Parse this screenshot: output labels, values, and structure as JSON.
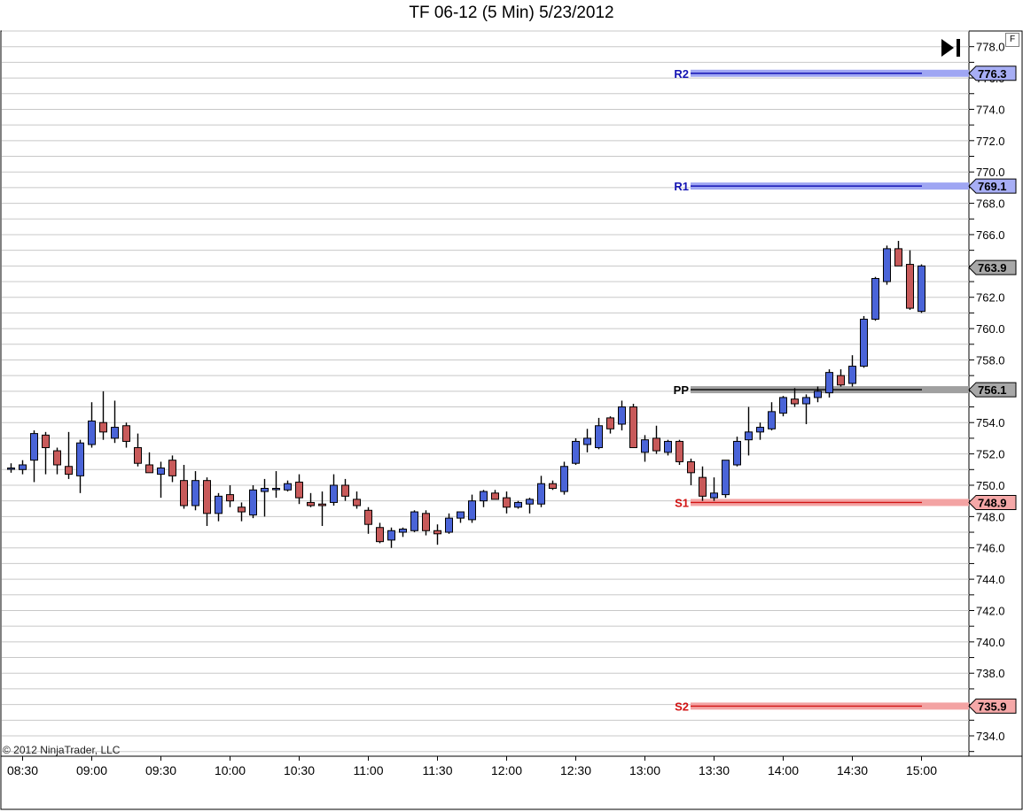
{
  "title": "TF 06-12 (5 Min)  5/23/2012",
  "copyright": "© 2012 NinjaTrader, LLC",
  "panel_button": "F",
  "colors": {
    "up": "#4a64d8",
    "down": "#c85a5a",
    "grid": "#c8c8c8",
    "resistance": "#1414b4",
    "support": "#d21414",
    "pivot": "#000000"
  },
  "chart_data": {
    "type": "candlestick",
    "title": "TF 06-12 (5 Min)  5/23/2012",
    "ylim": [
      732.7,
      779.0
    ],
    "y_ticks": [
      "734.0",
      "736.0",
      "738.0",
      "740.0",
      "742.0",
      "744.0",
      "746.0",
      "748.0",
      "750.0",
      "752.0",
      "754.0",
      "756.0",
      "758.0",
      "760.0",
      "762.0",
      "764.0",
      "766.0",
      "768.0",
      "770.0",
      "772.0",
      "774.0",
      "776.0",
      "778.0"
    ],
    "x_labels": [
      "08:30",
      "09:00",
      "09:30",
      "10:00",
      "10:30",
      "11:00",
      "11:30",
      "12:00",
      "12:30",
      "13:00",
      "13:30",
      "14:00",
      "14:30",
      "15:00"
    ],
    "bars_per_label": 6,
    "grid": true,
    "candles": [
      {
        "o": 751.1,
        "h": 751.4,
        "l": 750.8,
        "c": 751.1
      },
      {
        "o": 751.0,
        "h": 751.6,
        "l": 750.7,
        "c": 751.3
      },
      {
        "o": 751.6,
        "h": 753.5,
        "l": 750.2,
        "c": 753.3
      },
      {
        "o": 753.2,
        "h": 753.4,
        "l": 750.7,
        "c": 752.4
      },
      {
        "o": 752.2,
        "h": 752.4,
        "l": 750.7,
        "c": 751.3
      },
      {
        "o": 751.2,
        "h": 753.4,
        "l": 750.4,
        "c": 750.7
      },
      {
        "o": 750.6,
        "h": 752.9,
        "l": 749.5,
        "c": 752.7
      },
      {
        "o": 752.6,
        "h": 755.3,
        "l": 752.4,
        "c": 754.1
      },
      {
        "o": 754.0,
        "h": 756.0,
        "l": 752.9,
        "c": 753.4
      },
      {
        "o": 753.0,
        "h": 755.4,
        "l": 752.7,
        "c": 753.7
      },
      {
        "o": 753.8,
        "h": 754.0,
        "l": 752.4,
        "c": 752.8
      },
      {
        "o": 752.4,
        "h": 753.3,
        "l": 751.2,
        "c": 751.4
      },
      {
        "o": 751.3,
        "h": 752.1,
        "l": 750.9,
        "c": 750.8
      },
      {
        "o": 750.7,
        "h": 751.5,
        "l": 749.2,
        "c": 751.1
      },
      {
        "o": 751.6,
        "h": 751.9,
        "l": 750.2,
        "c": 750.6
      },
      {
        "o": 750.3,
        "h": 751.3,
        "l": 748.5,
        "c": 748.7
      },
      {
        "o": 748.7,
        "h": 750.9,
        "l": 748.4,
        "c": 750.3
      },
      {
        "o": 750.3,
        "h": 750.5,
        "l": 747.4,
        "c": 748.2
      },
      {
        "o": 748.2,
        "h": 749.5,
        "l": 747.7,
        "c": 749.3
      },
      {
        "o": 749.4,
        "h": 750.0,
        "l": 748.6,
        "c": 749.0
      },
      {
        "o": 748.6,
        "h": 748.9,
        "l": 747.7,
        "c": 748.3
      },
      {
        "o": 748.1,
        "h": 750.0,
        "l": 747.9,
        "c": 749.7
      },
      {
        "o": 749.6,
        "h": 750.4,
        "l": 748.0,
        "c": 749.8
      },
      {
        "o": 749.8,
        "h": 750.9,
        "l": 749.2,
        "c": 749.8
      },
      {
        "o": 749.7,
        "h": 750.3,
        "l": 749.6,
        "c": 750.1
      },
      {
        "o": 750.2,
        "h": 750.7,
        "l": 748.8,
        "c": 749.2
      },
      {
        "o": 748.9,
        "h": 749.5,
        "l": 748.6,
        "c": 748.7
      },
      {
        "o": 748.8,
        "h": 749.6,
        "l": 747.4,
        "c": 748.7
      },
      {
        "o": 748.9,
        "h": 750.7,
        "l": 748.7,
        "c": 750.0
      },
      {
        "o": 750.0,
        "h": 750.4,
        "l": 749.0,
        "c": 749.3
      },
      {
        "o": 749.1,
        "h": 749.6,
        "l": 748.5,
        "c": 748.7
      },
      {
        "o": 748.4,
        "h": 748.6,
        "l": 746.9,
        "c": 747.5
      },
      {
        "o": 747.3,
        "h": 747.6,
        "l": 746.3,
        "c": 746.4
      },
      {
        "o": 746.5,
        "h": 747.3,
        "l": 746.0,
        "c": 747.1
      },
      {
        "o": 747.0,
        "h": 747.3,
        "l": 746.7,
        "c": 747.2
      },
      {
        "o": 747.1,
        "h": 748.4,
        "l": 747.0,
        "c": 748.3
      },
      {
        "o": 748.2,
        "h": 748.4,
        "l": 746.8,
        "c": 747.1
      },
      {
        "o": 747.1,
        "h": 747.5,
        "l": 746.2,
        "c": 746.9
      },
      {
        "o": 747.0,
        "h": 748.2,
        "l": 746.9,
        "c": 747.9
      },
      {
        "o": 747.9,
        "h": 748.3,
        "l": 747.6,
        "c": 748.3
      },
      {
        "o": 747.8,
        "h": 749.4,
        "l": 747.6,
        "c": 749.0
      },
      {
        "o": 749.0,
        "h": 749.7,
        "l": 748.6,
        "c": 749.6
      },
      {
        "o": 749.5,
        "h": 749.7,
        "l": 749.1,
        "c": 749.1
      },
      {
        "o": 749.2,
        "h": 749.6,
        "l": 748.2,
        "c": 748.6
      },
      {
        "o": 748.6,
        "h": 749.0,
        "l": 748.5,
        "c": 748.9
      },
      {
        "o": 748.8,
        "h": 749.2,
        "l": 748.2,
        "c": 749.1
      },
      {
        "o": 748.8,
        "h": 750.6,
        "l": 748.6,
        "c": 750.1
      },
      {
        "o": 750.1,
        "h": 750.3,
        "l": 749.7,
        "c": 749.8
      },
      {
        "o": 749.6,
        "h": 751.5,
        "l": 749.4,
        "c": 751.2
      },
      {
        "o": 751.4,
        "h": 753.0,
        "l": 751.3,
        "c": 752.8
      },
      {
        "o": 752.6,
        "h": 753.6,
        "l": 752.1,
        "c": 753.0
      },
      {
        "o": 752.4,
        "h": 754.3,
        "l": 752.3,
        "c": 753.8
      },
      {
        "o": 754.3,
        "h": 754.4,
        "l": 753.3,
        "c": 753.6
      },
      {
        "o": 753.9,
        "h": 755.4,
        "l": 753.5,
        "c": 755.0
      },
      {
        "o": 755.0,
        "h": 755.2,
        "l": 752.4,
        "c": 752.4
      },
      {
        "o": 752.1,
        "h": 753.2,
        "l": 751.5,
        "c": 752.9
      },
      {
        "o": 753.0,
        "h": 753.8,
        "l": 752.0,
        "c": 752.2
      },
      {
        "o": 752.1,
        "h": 752.9,
        "l": 751.9,
        "c": 752.8
      },
      {
        "o": 752.8,
        "h": 752.9,
        "l": 751.3,
        "c": 751.5
      },
      {
        "o": 751.5,
        "h": 751.7,
        "l": 750.0,
        "c": 750.8
      },
      {
        "o": 750.5,
        "h": 751.2,
        "l": 749.0,
        "c": 749.3
      },
      {
        "o": 749.2,
        "h": 750.5,
        "l": 749.0,
        "c": 749.5
      },
      {
        "o": 749.4,
        "h": 751.6,
        "l": 749.2,
        "c": 751.6
      },
      {
        "o": 751.3,
        "h": 753.1,
        "l": 751.2,
        "c": 752.8
      },
      {
        "o": 752.9,
        "h": 755.0,
        "l": 751.9,
        "c": 753.4
      },
      {
        "o": 753.4,
        "h": 754.0,
        "l": 752.9,
        "c": 753.7
      },
      {
        "o": 753.6,
        "h": 755.3,
        "l": 753.5,
        "c": 754.7
      },
      {
        "o": 754.6,
        "h": 755.7,
        "l": 754.4,
        "c": 755.6
      },
      {
        "o": 755.5,
        "h": 756.2,
        "l": 755.0,
        "c": 755.2
      },
      {
        "o": 755.2,
        "h": 755.8,
        "l": 753.9,
        "c": 755.6
      },
      {
        "o": 755.6,
        "h": 756.3,
        "l": 755.3,
        "c": 756.0
      },
      {
        "o": 755.9,
        "h": 757.4,
        "l": 755.6,
        "c": 757.2
      },
      {
        "o": 757.0,
        "h": 757.4,
        "l": 756.3,
        "c": 756.4
      },
      {
        "o": 756.5,
        "h": 758.3,
        "l": 756.3,
        "c": 757.6
      },
      {
        "o": 757.6,
        "h": 760.8,
        "l": 757.5,
        "c": 760.6
      },
      {
        "o": 760.6,
        "h": 763.3,
        "l": 760.5,
        "c": 763.2
      },
      {
        "o": 763.0,
        "h": 765.3,
        "l": 762.8,
        "c": 765.1
      },
      {
        "o": 765.1,
        "h": 765.6,
        "l": 764.0,
        "c": 764.0
      },
      {
        "o": 764.1,
        "h": 765.0,
        "l": 761.2,
        "c": 761.3
      },
      {
        "o": 761.1,
        "h": 764.1,
        "l": 761.0,
        "c": 764.0
      }
    ],
    "levels": [
      {
        "name": "R2",
        "value": 776.3,
        "label": "776.3",
        "type": "resistance"
      },
      {
        "name": "R1",
        "value": 769.1,
        "label": "769.1",
        "type": "resistance"
      },
      {
        "name": "PP",
        "value": 756.1,
        "label": "756.1",
        "type": "pivot"
      },
      {
        "name": "S1",
        "value": 748.9,
        "label": "748.9",
        "type": "support"
      },
      {
        "name": "S2",
        "value": 735.9,
        "label": "735.9",
        "type": "support"
      }
    ],
    "last_price": {
      "value": 763.9,
      "label": "763.9"
    }
  }
}
